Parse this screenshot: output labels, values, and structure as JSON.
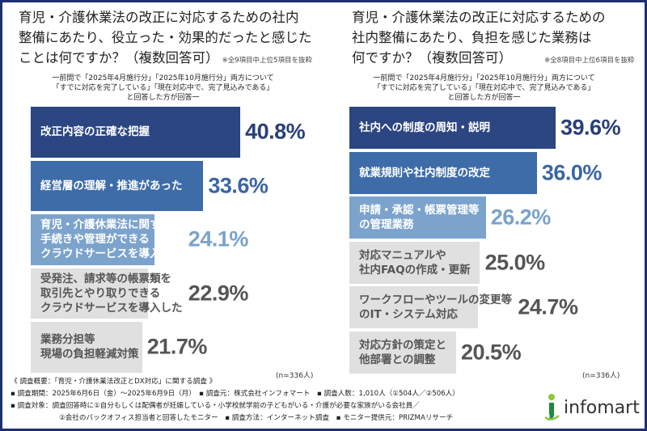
{
  "chart_data": [
    {
      "type": "bar",
      "orientation": "horizontal",
      "title": "育児・介護休業法の改正に対応するための社内\n整備にあたり、役立った・効果的だったと感じた\nことは何ですか？（複数回答可）",
      "note": "※全9項目中上位5項目を抜粋",
      "subtitle": "一前問で「2025年4月施行分」「2025年10月施行分」両方について\n「すでに対応を完了している」「現在対応中で、完了見込みである」\nと回答した方が回答一",
      "categories": [
        "改正内容の正確な把握",
        "経営層の理解・推進があった",
        "育児・介護休業法に関する\n手続きや管理ができる\nクラウドサービスを導入した",
        "受発注、請求等の帳票類を\n取引先とやり取りできる\nクラウドサービスを導入した",
        "業務分担等\n現場の負担軽減対策"
      ],
      "values": [
        40.8,
        33.6,
        24.1,
        22.9,
        21.7
      ],
      "labels": [
        "40.8%",
        "33.6%",
        "24.1%",
        "22.9%",
        "21.7%"
      ],
      "colors": [
        "#2b4680",
        "#3d6ca9",
        "#7ba3cc",
        "#e0e0e0",
        "#e0e0e0"
      ],
      "label_colors": [
        "#ffffff",
        "#ffffff",
        "#ffffff",
        "#555555",
        "#555555"
      ],
      "pct_colors": [
        "#283f78",
        "#3a66a3",
        "#7aa2cb",
        "#555555",
        "#555555"
      ],
      "n": "(n=336人)"
    },
    {
      "type": "bar",
      "orientation": "horizontal",
      "title": "育児・介護休業法の改正に対応するための\n社内整備にあたり、負担を感じた業務は\n何ですか？（複数回答可）",
      "note": "※全8項目中上位6項目を抜粋",
      "subtitle": "一前問で「2025年4月施行分」「2025年10月施行分」両方について\n「すでに対応を完了している」「現在対応中で、完了見込みである」\nと回答した方が回答一",
      "categories": [
        "社内への制度の周知・説明",
        "就業規則や社内制度の改定",
        "申請・承認・帳票管理等\nの管理業務",
        "対応マニュアルや\n社内FAQの作成・更新",
        "ワークフローやツールの変更等\nのIT・システム対応",
        "対応方針の策定と\n他部署との調整"
      ],
      "values": [
        39.6,
        36.0,
        26.2,
        25.0,
        24.7,
        20.5
      ],
      "labels": [
        "39.6%",
        "36.0%",
        "26.2%",
        "25.0%",
        "24.7%",
        "20.5%"
      ],
      "colors": [
        "#2b4680",
        "#3d6ca9",
        "#7ba3cc",
        "#e0e0e0",
        "#e0e0e0",
        "#e0e0e0"
      ],
      "label_colors": [
        "#ffffff",
        "#ffffff",
        "#ffffff",
        "#555555",
        "#555555",
        "#555555"
      ],
      "pct_colors": [
        "#283f78",
        "#3a66a3",
        "#7aa2cb",
        "#555555",
        "#555555",
        "#555555"
      ],
      "n": "(n=336人)"
    }
  ],
  "footer": {
    "line1": "《 調査概要：「育児・介護休業法改正とDX対応」に関する調査 》",
    "line2": "▪ 調査期間：2025年6月6日（金）～2025年6月9日（月）　▪ 調査元：株式会社インフォマート　▪ 調査人数：1,010人（①504人／②506人）",
    "line3": "▪ 調査対象：調査回答時に①自分もしくは配偶者が妊娠している・小学校就学前の子どもがいる・介護が必要な家族がいる会社員／",
    "line4": "②会社のバックオフィス担当者と回答したモニター　▪ 調査方法：インターネット調査　▪ モニター提供元：PRIZMAリサーチ"
  },
  "logo": {
    "text": "infomart",
    "colors": [
      "#8cc63f",
      "#1f8a3b"
    ]
  }
}
